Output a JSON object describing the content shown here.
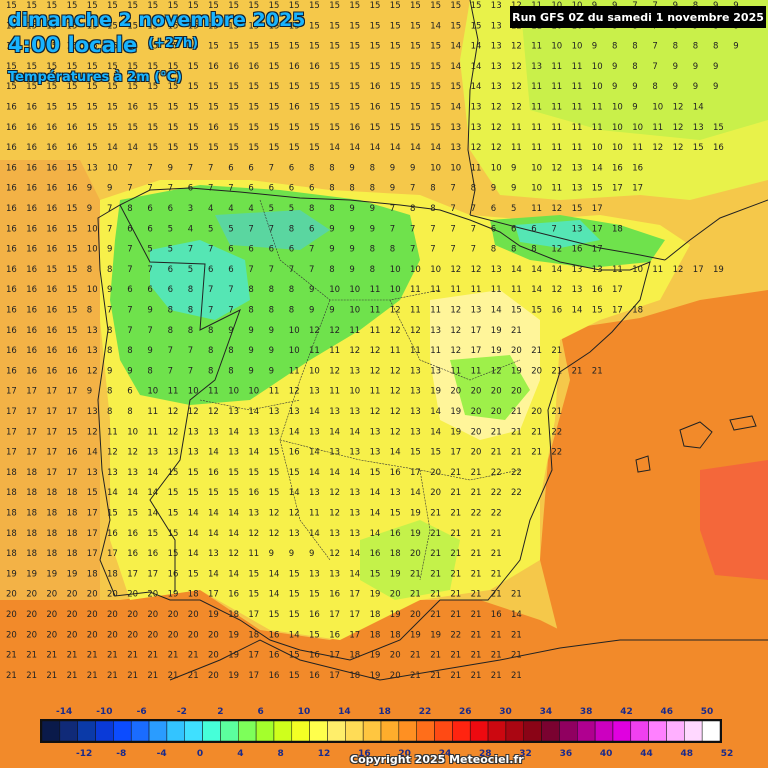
{
  "header": {
    "date": "dimanche 2 novembre 2025",
    "time": "4:00 locale",
    "lead": "(+27h)",
    "parameter": "Températures à 2m (°C)"
  },
  "run_info": "Run GFS 0Z du samedi 1 novembre 2025",
  "copyright": "Copyright 2025 Meteociel.fr",
  "legend": {
    "top_labels": [
      "-14",
      "-10",
      "-6",
      "-2",
      "2",
      "6",
      "10",
      "14",
      "18",
      "22",
      "26",
      "30",
      "34",
      "38",
      "42",
      "46",
      "50"
    ],
    "bottom_labels": [
      "-12",
      "-8",
      "-4",
      "0",
      "4",
      "8",
      "12",
      "16",
      "20",
      "24",
      "28",
      "32",
      "36",
      "40",
      "44",
      "48",
      "52"
    ],
    "colors": [
      "#0a1a4a",
      "#102a78",
      "#0b3aa8",
      "#0a3ad8",
      "#0c4cff",
      "#1a6cff",
      "#2a9cff",
      "#33c4ff",
      "#3fe0ff",
      "#46ffd9",
      "#5cff9e",
      "#7dff5a",
      "#a4ff2c",
      "#cfff1c",
      "#f4ff24",
      "#ffff4c",
      "#ffee6a",
      "#ffdc56",
      "#ffc640",
      "#ffad2c",
      "#ff9022",
      "#ff6e1a",
      "#ff4a14",
      "#ff2410",
      "#ee0a10",
      "#cc0810",
      "#aa0612",
      "#8a0416",
      "#7a0230",
      "#900060",
      "#b00090",
      "#cc00c0",
      "#e000e0",
      "#f040f0",
      "#ff80ff",
      "#ffb0ff",
      "#ffd8ff",
      "#ffffff"
    ]
  },
  "temperature_rows": [
    "151515151515151515151515151515151515151515151515131211101099779899",
    "151515151515151515151515151515151515151515141515131211101098876988",
    "151515151515151515151515151515151515151515151414131211101098878889",
    "151515151515151515151616161516161515151515151414131213111110987999",
    "151515151515151515151515151515151515161515151514131211111110998999",
    "161615151515161515151515151516151515161515151413121211111111109101214",
    "161616161515151515151615151515151516151515151313121111111111101011121315",
    "161616161514141515151515151515151414141414141312121111111110101112121516",
    "161616151310779776676889899101011109101213141616",
    "161616169977767766668889787899101113151717",
    "16161615978663444558899788776511121517",
    "161616151076654557786999777776667131718",
    "16161615109755776666799887777888121617",
    "161615158877656677778981010101212131414141313111011121719",
    "161616151096668778889101011101111111111111412131617",
    "161616158779887788899101112111112131415151614151718",
    "1616161513877888999101212111112121312171921",
    "16161616138897788991011111212111111121719202121",
    "161616161299877889911101213121213131111121920212121",
    "1717171798610111011101011121311101112131920202020",
    "171717171388111212121314131314131312121314192020212021",
    "17171715121110111213131413131413141413121314192021212122",
    "17171716141212131313141314151614131313141515172021212122",
    "1818171713131314151516151515151414141516172021212222",
    "1818181815141414151515151615141312131413142021212222",
    "18181818171515141514141413121211121314151921212222",
    "18181818171616151514141412121314131314161921212121",
    "18181818171716161514131211999121416182021212121",
    "19191919181817171615141415141513131415192121212121",
    "2020202020202020191817161514151516171920212121212121",
    "2020202020202020202019181715151617171819202121211614",
    "2020202020202020202020191816141516171818191922212121",
    "2121212121212121212120191716151617181920212121212121",
    "2121212121212121212120191716151617181920212121212121"
  ]
}
